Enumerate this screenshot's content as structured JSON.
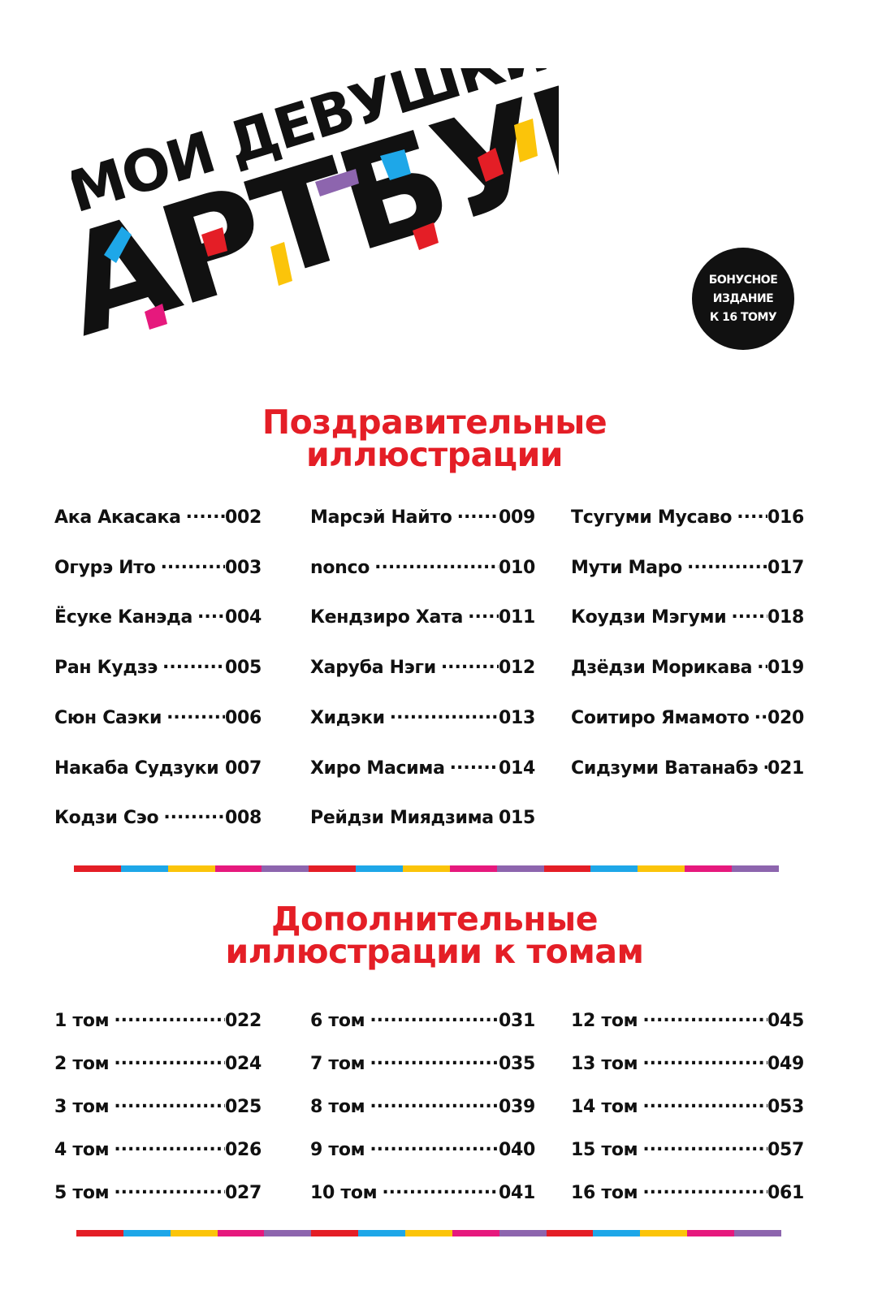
{
  "colors": {
    "red": "#e41e26",
    "blue": "#1ea7e8",
    "yellow": "#fbc40a",
    "pink": "#e6197d",
    "purple": "#8d65ae",
    "black": "#111111"
  },
  "logo": {
    "line1": "МОИ ДЕВУШКИ",
    "line2": "АРТБУК"
  },
  "badge": {
    "line1": "БОНУСНОЕ",
    "line2": "ИЗДАНИЕ",
    "line3": "К 16 ТОМУ"
  },
  "section1": {
    "title_line1": "Поздравительные",
    "title_line2": "иллюстрации",
    "columns": [
      [
        {
          "name": "Ака Акасака",
          "page": "002"
        },
        {
          "name": "Огурэ Ито",
          "page": "003"
        },
        {
          "name": "Ёсуке Канэда",
          "page": "004"
        },
        {
          "name": "Ран Кудзэ",
          "page": "005"
        },
        {
          "name": "Сюн Саэки",
          "page": "006"
        },
        {
          "name": "Накаба Судзуки",
          "page": "007"
        },
        {
          "name": "Кодзи Сэо",
          "page": "008"
        }
      ],
      [
        {
          "name": "Марсэй Найто",
          "page": "009"
        },
        {
          "name": "nonco",
          "page": "010"
        },
        {
          "name": "Кендзиро Хата",
          "page": "011"
        },
        {
          "name": "Харуба Нэги",
          "page": "012"
        },
        {
          "name": "Хидэки",
          "page": "013"
        },
        {
          "name": "Хиро Масима",
          "page": "014"
        },
        {
          "name": "Рейдзи Миядзима",
          "page": "015"
        }
      ],
      [
        {
          "name": "Тсугуми Мусаво",
          "page": "016"
        },
        {
          "name": "Мути Маро",
          "page": "017"
        },
        {
          "name": "Коудзи Мэгуми",
          "page": "018"
        },
        {
          "name": "Дзёдзи Морикава",
          "page": "019"
        },
        {
          "name": "Соитиро Ямамото",
          "page": "020"
        },
        {
          "name": "Сидзуми Ватанабэ",
          "page": "021"
        }
      ]
    ]
  },
  "section2": {
    "title_line1": "Дополнительные",
    "title_line2": "иллюстрации к томам",
    "columns": [
      [
        {
          "name": "1 том",
          "page": "022"
        },
        {
          "name": "2 том",
          "page": "024"
        },
        {
          "name": "3 том",
          "page": "025"
        },
        {
          "name": "4 том",
          "page": "026"
        },
        {
          "name": "5 том",
          "page": "027"
        }
      ],
      [
        {
          "name": "6 том",
          "page": "031"
        },
        {
          "name": "7 том",
          "page": "035"
        },
        {
          "name": "8 том",
          "page": "039"
        },
        {
          "name": "9 том",
          "page": "040"
        },
        {
          "name": "10 том",
          "page": "041"
        }
      ],
      [
        {
          "name": "12 том",
          "page": "045"
        },
        {
          "name": "13 том",
          "page": "049"
        },
        {
          "name": "14 том",
          "page": "053"
        },
        {
          "name": "15 том",
          "page": "057"
        },
        {
          "name": "16 том",
          "page": "061"
        }
      ]
    ]
  }
}
